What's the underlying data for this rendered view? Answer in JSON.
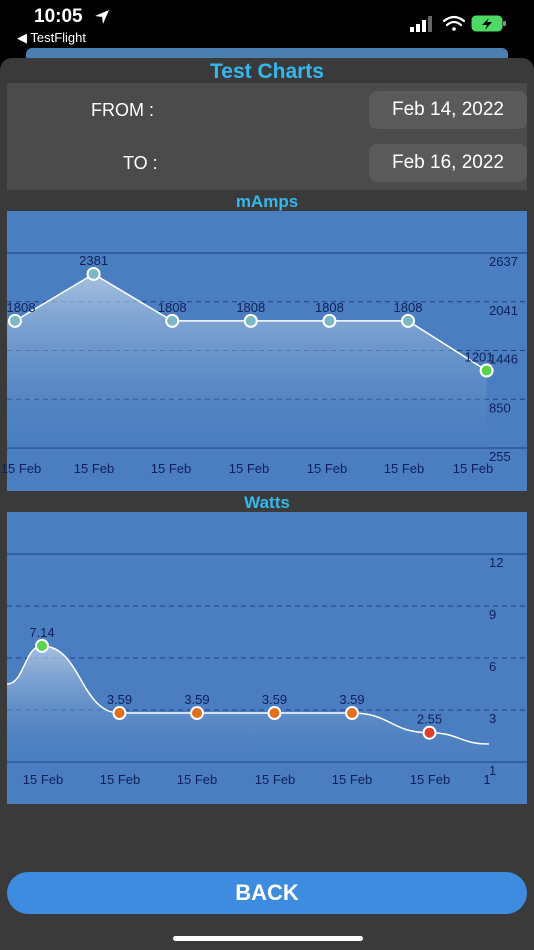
{
  "status_bar": {
    "time": "10:05",
    "back_app": "◀ TestFlight"
  },
  "page": {
    "title": "Test Charts"
  },
  "date_range": {
    "from_label": "FROM :",
    "from_value": "Feb 14, 2022",
    "to_label": "TO :",
    "to_value": "Feb 16, 2022"
  },
  "back_button": {
    "label": "BACK"
  },
  "colors": {
    "accent": "#33b8f0",
    "chart_bg": "#4a7ec0",
    "button": "#3d8ce0",
    "point_teal": "#7ab8c8",
    "point_green": "#5ad24a",
    "point_orange": "#e0701e",
    "point_red": "#e03c2c"
  },
  "chart_data": [
    {
      "type": "area",
      "title": "mAmps",
      "x_tick_labels": [
        "15 Feb",
        "15 Feb",
        "15 Feb",
        "15 Feb",
        "15 Feb",
        "15 Feb",
        "15 Feb"
      ],
      "values": [
        1808,
        2381,
        1808,
        1808,
        1808,
        1808,
        1201
      ],
      "value_labels": [
        "1808",
        "2381",
        "1808",
        "1808",
        "1808",
        "1808",
        "1201"
      ],
      "y_tick_labels": [
        "2637",
        "2041",
        "1446",
        "850",
        "255"
      ],
      "ylim": [
        255,
        2637
      ],
      "point_colors": [
        "#7ab8c8",
        "#7ab8c8",
        "#7ab8c8",
        "#7ab8c8",
        "#7ab8c8",
        "#7ab8c8",
        "#5ad24a"
      ],
      "legend": "none",
      "grid": true
    },
    {
      "type": "area",
      "title": "Watts",
      "x_tick_labels": [
        "15 Feb",
        "15 Feb",
        "15 Feb",
        "15 Feb",
        "15 Feb",
        "15 Feb",
        "1"
      ],
      "values": [
        7.14,
        3.59,
        3.59,
        3.59,
        3.59,
        2.55
      ],
      "value_labels": [
        "7.14",
        "3.59",
        "3.59",
        "3.59",
        "3.59",
        "2.55"
      ],
      "y_tick_labels": [
        "12",
        "9",
        "6",
        "3",
        "1"
      ],
      "ylim": [
        1,
        12
      ],
      "point_colors": [
        "#5ad24a",
        "#e0701e",
        "#e0701e",
        "#e0701e",
        "#e0701e",
        "#e03c2c"
      ],
      "legend": "none",
      "grid": true
    }
  ]
}
